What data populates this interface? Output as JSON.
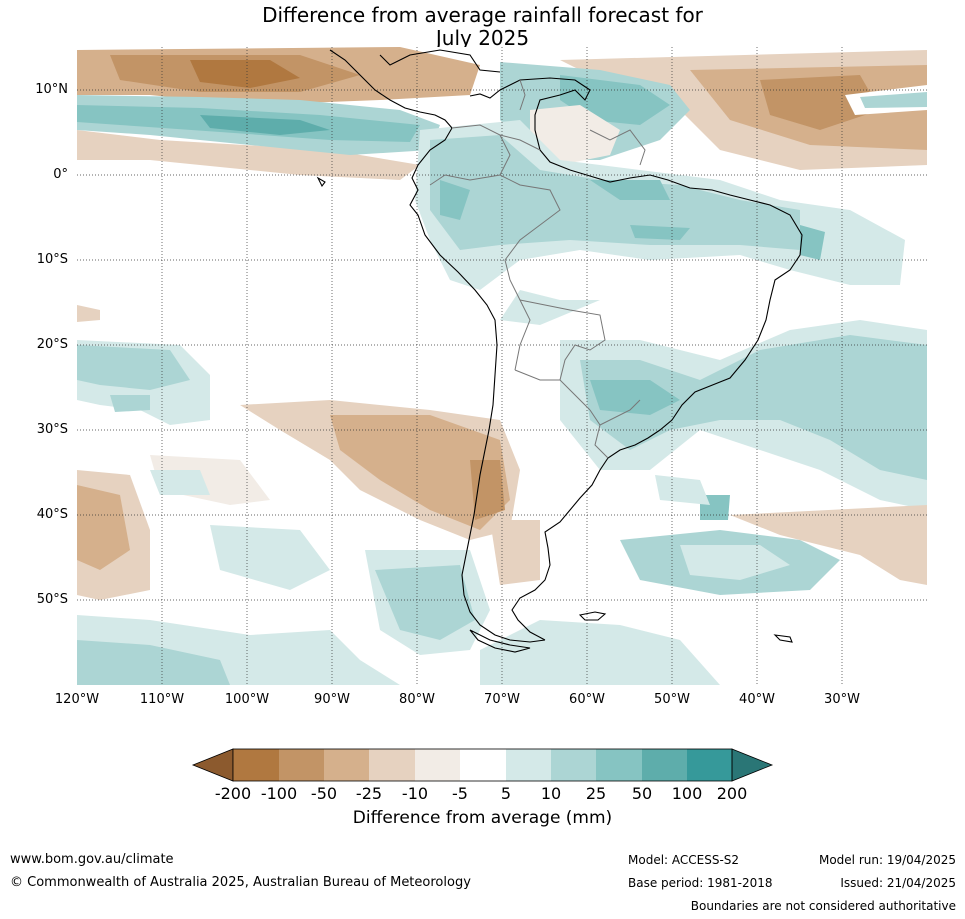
{
  "title": {
    "line1": "Difference from average rainfall forecast for",
    "line2": "July 2025"
  },
  "map": {
    "lat_labels": [
      "10°N",
      "0°",
      "10°S",
      "20°S",
      "30°S",
      "40°S",
      "50°S"
    ],
    "lon_labels": [
      "120°W",
      "110°W",
      "100°W",
      "90°W",
      "80°W",
      "70°W",
      "60°W",
      "50°W",
      "40°W",
      "30°W"
    ]
  },
  "colorbar": {
    "title": "Difference from average (mm)",
    "ticks": [
      "-200",
      "-100",
      "-50",
      "-25",
      "-10",
      "-5",
      "5",
      "10",
      "25",
      "50",
      "100",
      "200"
    ],
    "colors": [
      "#8c5a2e",
      "#b07840",
      "#c29466",
      "#d5b08c",
      "#e6d2c0",
      "#f2ece6",
      "#ffffff",
      "#d4e9e8",
      "#acd5d4",
      "#86c4c2",
      "#5eadab",
      "#36999a",
      "#2a7676"
    ]
  },
  "footer": {
    "website": "www.bom.gov.au/climate",
    "copyright": "© Commonwealth of Australia 2025, Australian Bureau of Meteorology",
    "model": "Model: ACCESS-S2",
    "base_period": "Base period: 1981-2018",
    "model_run": "Model run: 19/04/2025",
    "issued": "Issued: 21/04/2025",
    "disclaimer": "Boundaries are not considered authoritative"
  }
}
